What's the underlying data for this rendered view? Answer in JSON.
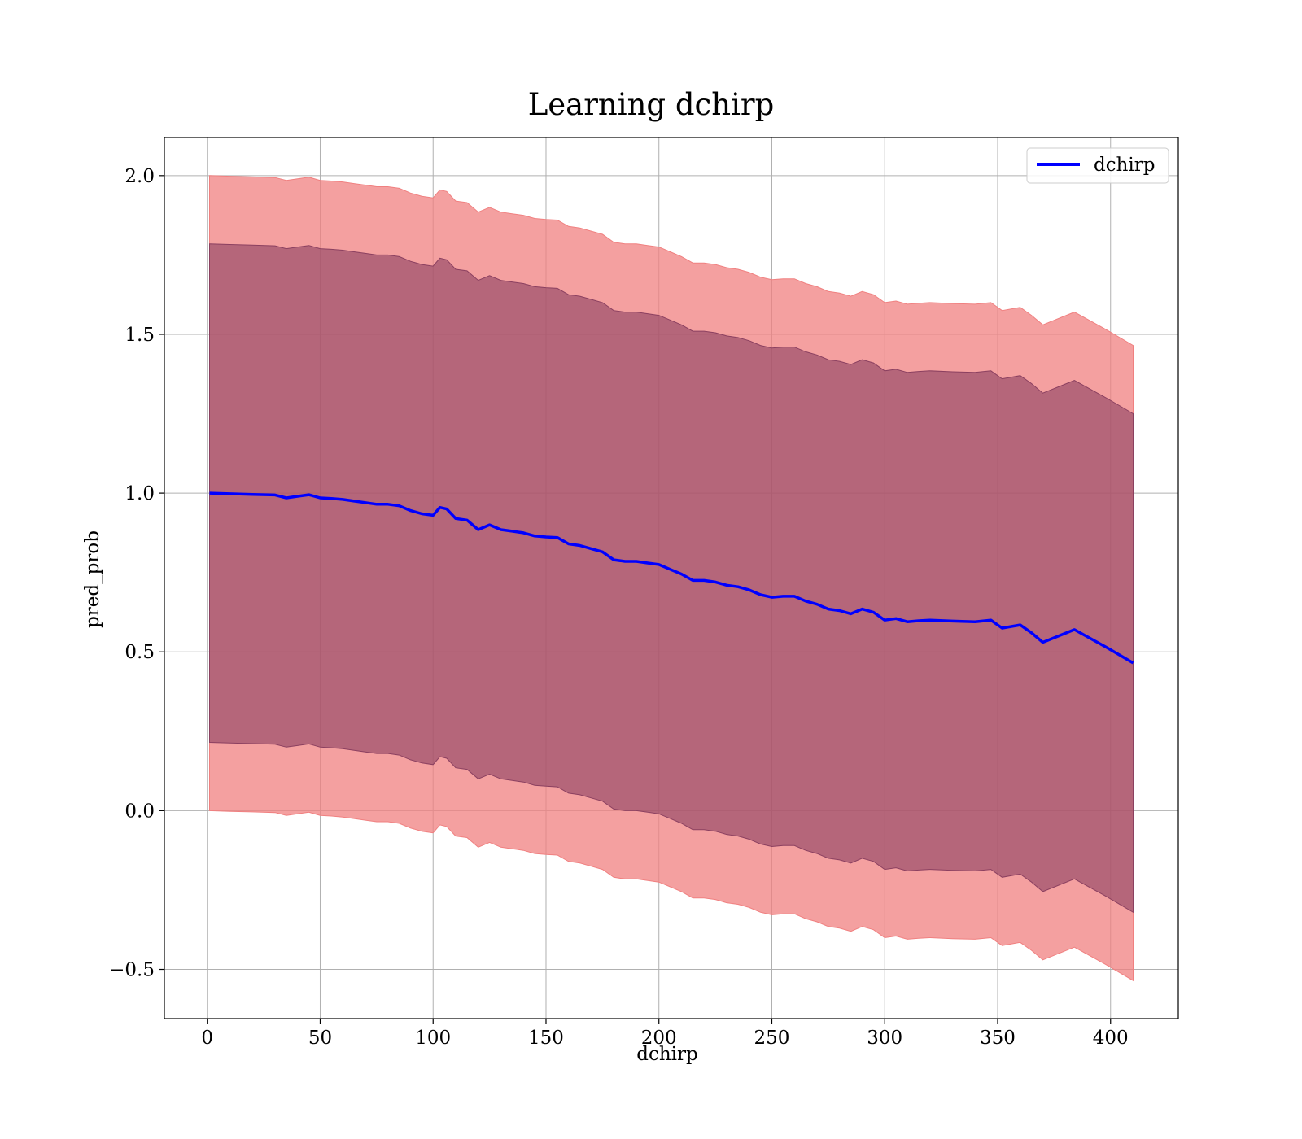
{
  "chart_data": {
    "type": "line",
    "title": "Learning dchirp",
    "xlabel": "dchirp",
    "ylabel": "pred_prob",
    "xlim": [
      -19,
      430
    ],
    "ylim": [
      -0.655,
      2.12
    ],
    "xticks": [
      0,
      50,
      100,
      150,
      200,
      250,
      300,
      350,
      400
    ],
    "yticks": [
      -0.5,
      0.0,
      0.5,
      1.0,
      1.5,
      2.0
    ],
    "xtick_labels": [
      "0",
      "50",
      "100",
      "150",
      "200",
      "250",
      "300",
      "350",
      "400"
    ],
    "ytick_labels": [
      "−0.5",
      "0.0",
      "0.5",
      "1.0",
      "1.5",
      "2.0"
    ],
    "grid": true,
    "legend_position": "top-right",
    "series": [
      {
        "name": "dchirp",
        "color": "#0000ff",
        "x": [
          1,
          10,
          20,
          30,
          35,
          40,
          45,
          50,
          55,
          60,
          65,
          70,
          75,
          80,
          85,
          90,
          95,
          100,
          103,
          106,
          110,
          115,
          120,
          125,
          130,
          135,
          140,
          145,
          150,
          155,
          160,
          165,
          170,
          175,
          180,
          185,
          190,
          195,
          200,
          205,
          210,
          215,
          220,
          225,
          230,
          235,
          240,
          245,
          250,
          255,
          260,
          265,
          270,
          275,
          280,
          285,
          290,
          295,
          300,
          305,
          310,
          315,
          320,
          330,
          340,
          347,
          352,
          360,
          365,
          370,
          384,
          398,
          410
        ],
        "y": [
          1.0,
          0.998,
          0.996,
          0.994,
          0.985,
          0.99,
          0.995,
          0.985,
          0.983,
          0.98,
          0.975,
          0.97,
          0.965,
          0.965,
          0.96,
          0.945,
          0.935,
          0.93,
          0.955,
          0.95,
          0.92,
          0.915,
          0.885,
          0.9,
          0.885,
          0.88,
          0.875,
          0.865,
          0.862,
          0.86,
          0.84,
          0.835,
          0.825,
          0.815,
          0.79,
          0.785,
          0.785,
          0.78,
          0.775,
          0.76,
          0.745,
          0.725,
          0.725,
          0.72,
          0.71,
          0.705,
          0.695,
          0.68,
          0.672,
          0.675,
          0.675,
          0.66,
          0.65,
          0.635,
          0.63,
          0.62,
          0.635,
          0.625,
          0.6,
          0.605,
          0.595,
          0.598,
          0.6,
          0.597,
          0.595,
          0.6,
          0.575,
          0.585,
          0.56,
          0.53,
          0.57,
          0.515,
          0.465
        ]
      }
    ],
    "bands": [
      {
        "color": "#f08080",
        "opacity": 0.75,
        "offset": 1.0
      },
      {
        "color": "#8b4060",
        "opacity": 0.6,
        "offset": 0.785
      }
    ]
  }
}
